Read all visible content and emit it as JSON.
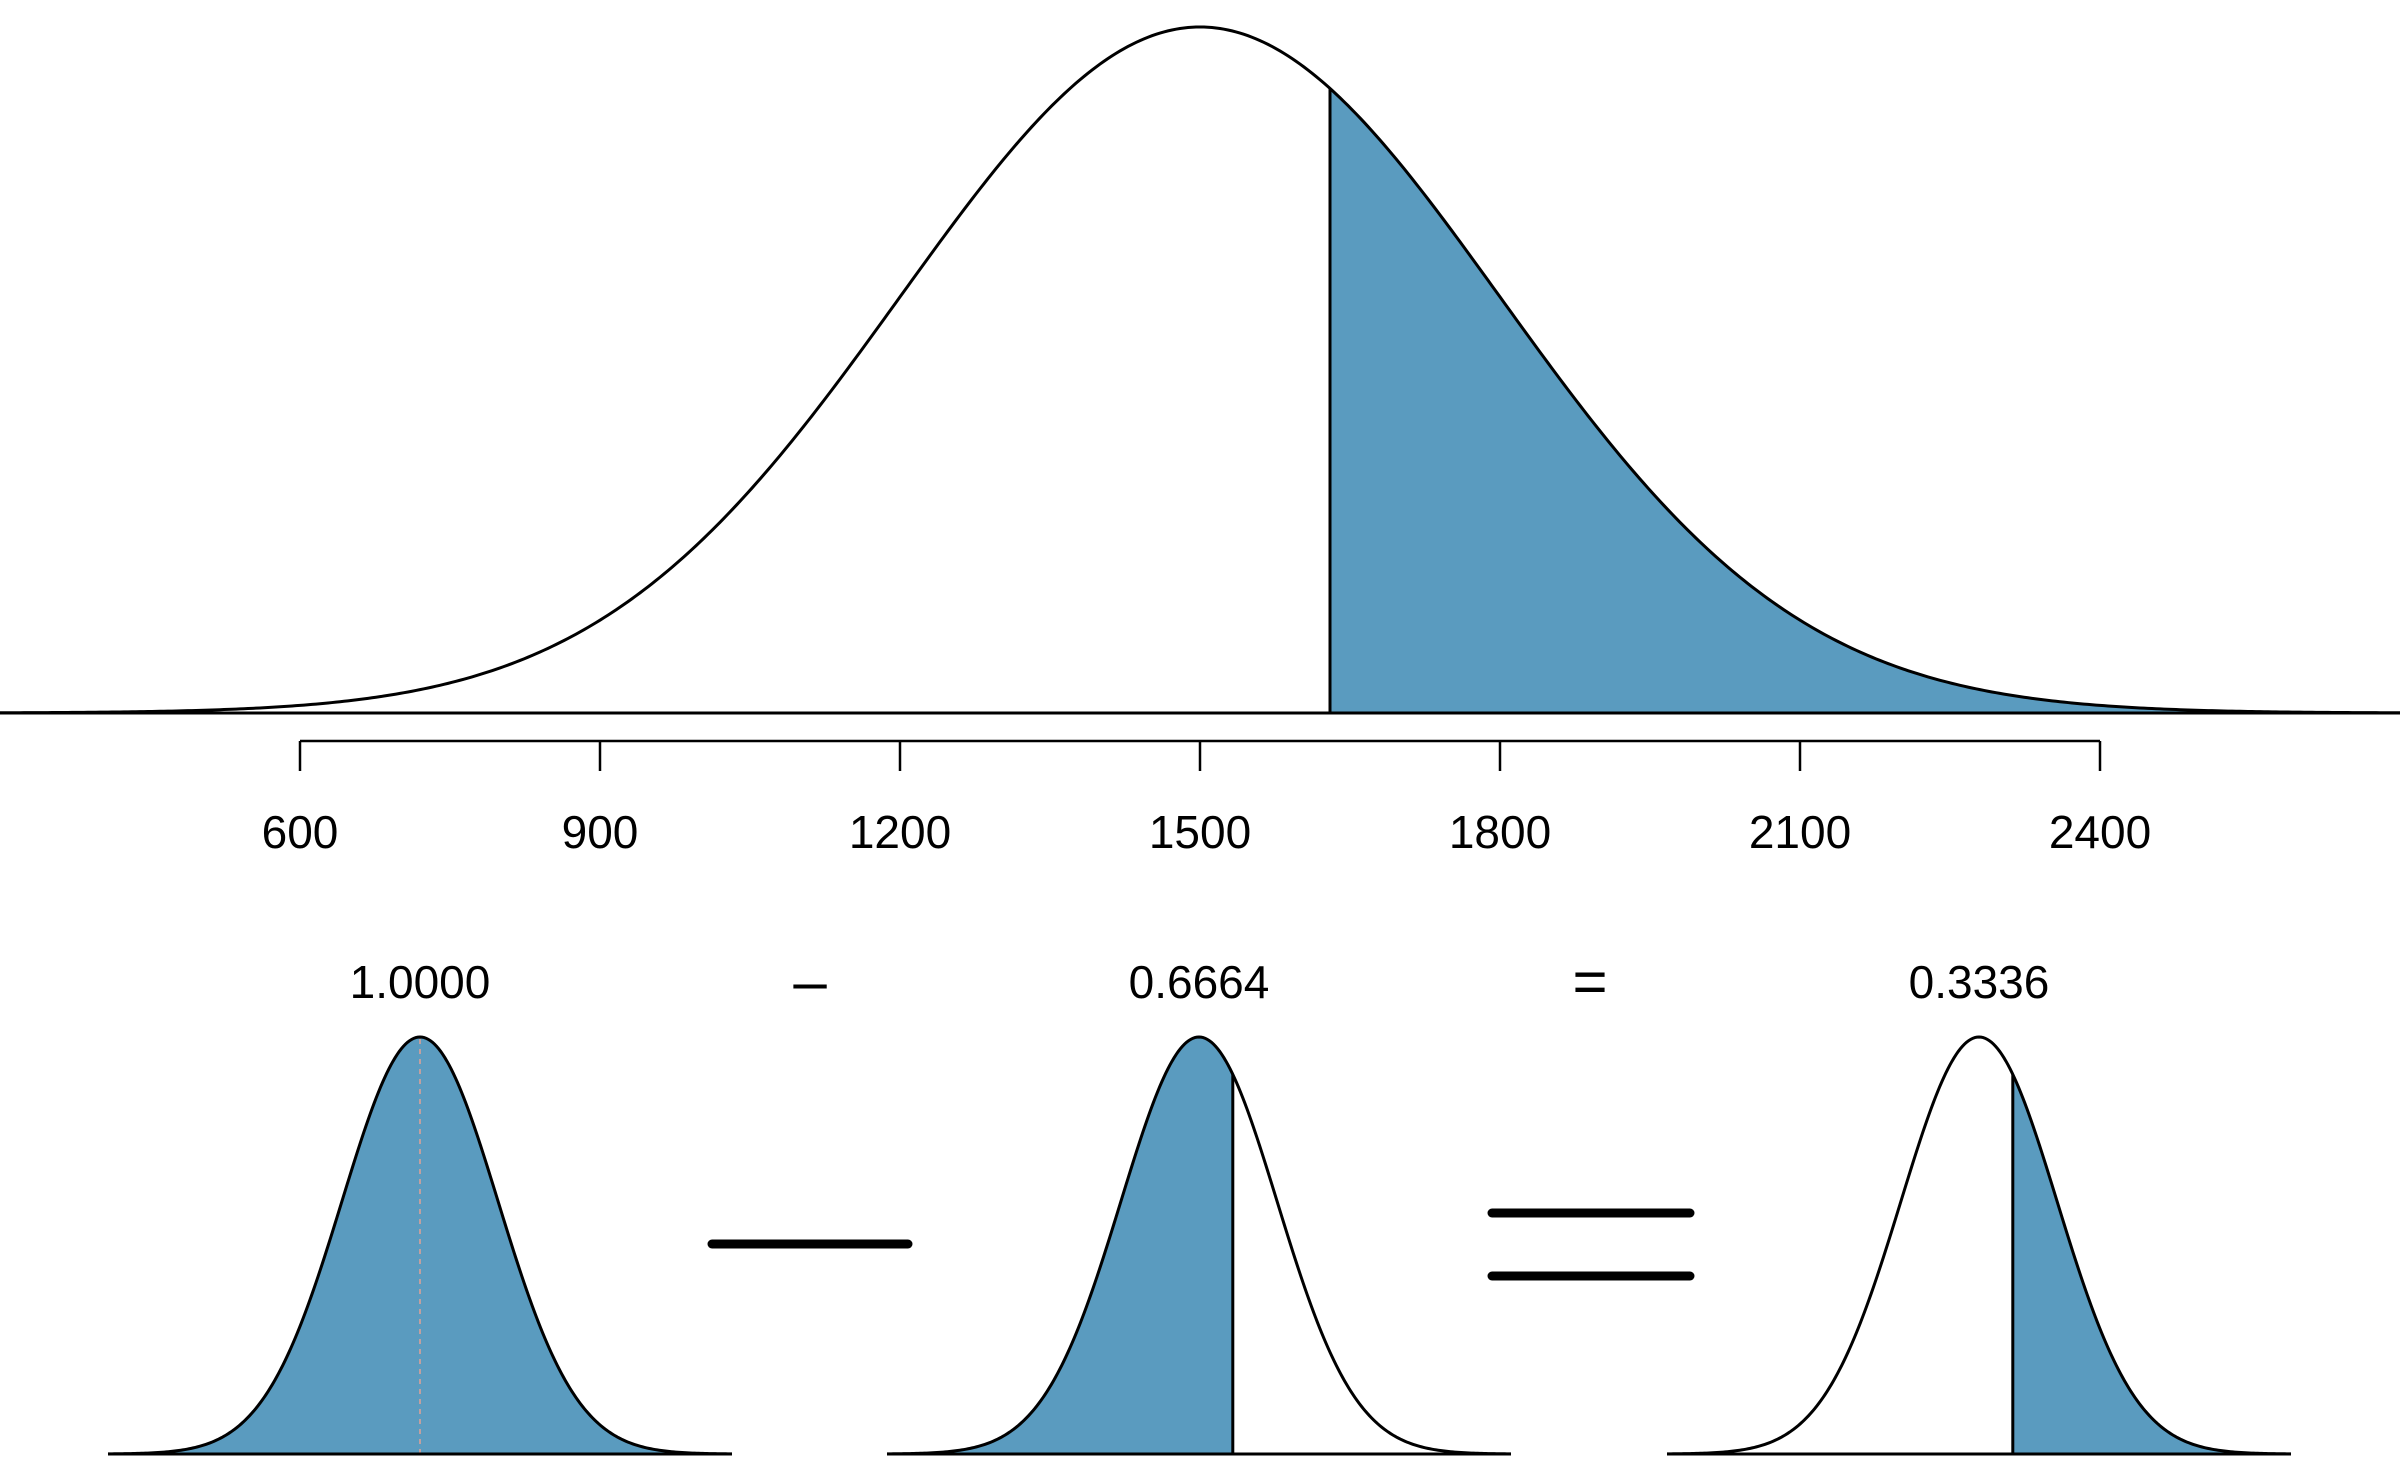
{
  "chart_data": {
    "type": "area",
    "distribution": "normal",
    "mean": 1500,
    "sd": 300,
    "cutoff": 1630,
    "shaded_region": "upper tail",
    "xlim": [
      300,
      2700
    ],
    "axis_ticks": [
      600,
      900,
      1200,
      1500,
      1800,
      2100,
      2400
    ],
    "tick_labels": [
      "600",
      "900",
      "1200",
      "1500",
      "1800",
      "2100",
      "2400"
    ],
    "colors": {
      "fill": "#5a9bbf",
      "stroke": "#000000",
      "dotted_center": "#c0a0a0"
    },
    "grid": false,
    "equation": {
      "terms": [
        {
          "label": "1.0000",
          "value": 1.0,
          "shaded": "all"
        },
        {
          "label": "0.6664",
          "value": 0.6664,
          "shaded": "lower"
        },
        {
          "label": "0.3336",
          "value": 0.3336,
          "shaded": "upper"
        }
      ],
      "operators": [
        "–",
        "="
      ]
    }
  }
}
